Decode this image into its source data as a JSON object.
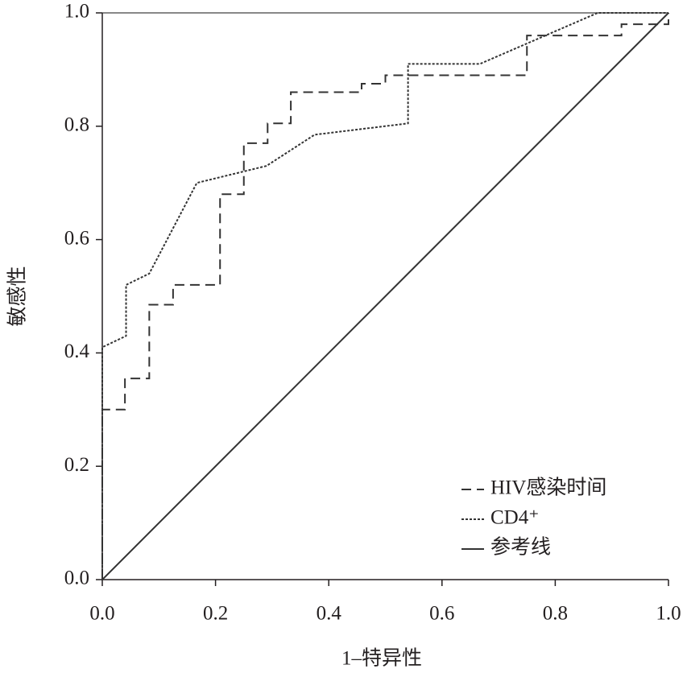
{
  "chart_data": {
    "type": "line",
    "x_label": "1–特异性",
    "y_label": "敏感性",
    "xlim": [
      0,
      1
    ],
    "ylim": [
      0,
      1
    ],
    "xticks": [
      {
        "value": 0,
        "label": "0.0"
      },
      0.2,
      0.4,
      0.6,
      0.8,
      {
        "value": 1,
        "label": "1.0"
      }
    ],
    "yticks": [
      {
        "value": 0,
        "label": "0.0"
      },
      0.2,
      0.4,
      0.6,
      0.8,
      {
        "value": 1,
        "label": "1.0"
      }
    ],
    "legend": "lower right",
    "series": [
      {
        "name": "HIV感染时间",
        "color": "#333333",
        "dash": "dashed",
        "x": [
          0,
          0,
          0.04,
          0.04,
          0.083,
          0.083,
          0.125,
          0.125,
          0.208,
          0.208,
          0.25,
          0.25,
          0.292,
          0.292,
          0.333,
          0.333,
          0.458,
          0.458,
          0.5,
          0.5,
          0.75,
          0.75,
          0.917,
          0.917,
          1,
          1
        ],
        "values": [
          0,
          0.3,
          0.3,
          0.355,
          0.355,
          0.485,
          0.485,
          0.52,
          0.52,
          0.68,
          0.68,
          0.77,
          0.77,
          0.805,
          0.805,
          0.86,
          0.86,
          0.875,
          0.875,
          0.89,
          0.89,
          0.96,
          0.96,
          0.98,
          0.98,
          1
        ]
      },
      {
        "name": "CD4⁺",
        "color": "#333333",
        "dash": "dotted",
        "x": [
          0,
          0,
          0.042,
          0.042,
          0.083,
          0.167,
          0.29,
          0.375,
          0.54,
          0.54,
          0.667,
          0.875,
          1
        ],
        "values": [
          0,
          0.41,
          0.43,
          0.52,
          0.54,
          0.7,
          0.73,
          0.785,
          0.805,
          0.91,
          0.91,
          1,
          1
        ]
      },
      {
        "name": "参考线",
        "color": "#333333",
        "dash": "solid",
        "x": [
          0,
          1
        ],
        "values": [
          0,
          1
        ]
      }
    ]
  }
}
